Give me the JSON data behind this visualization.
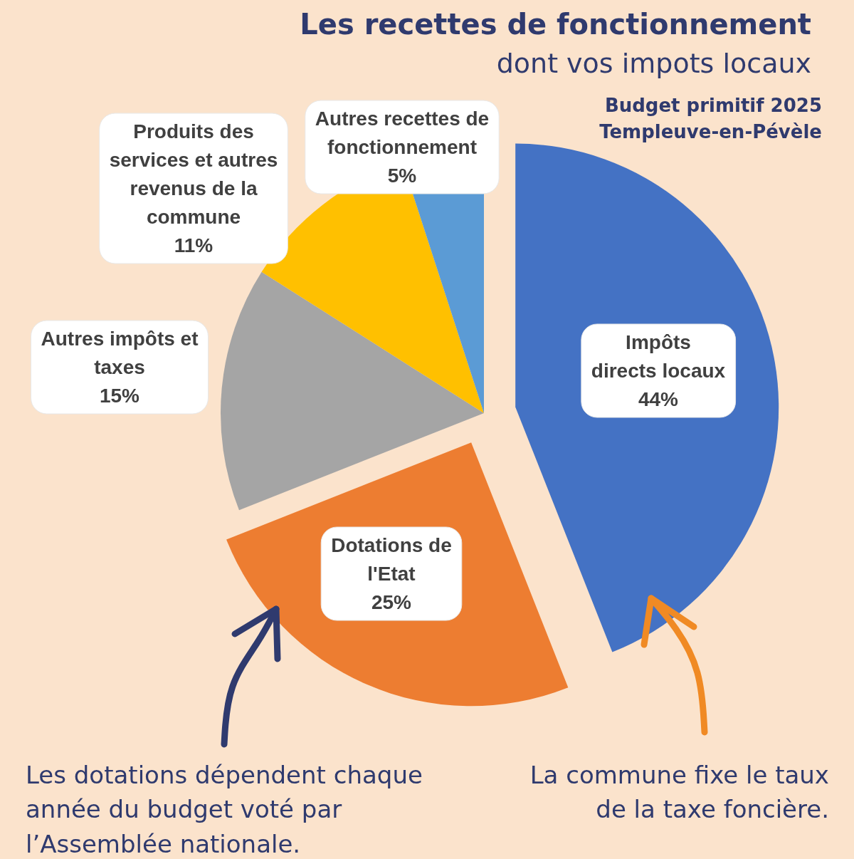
{
  "chart_data": {
    "type": "pie",
    "title": "Les recettes de fonctionnement",
    "subtitle": "dont vos impots locaux",
    "categories": [
      "Impôts directs locaux",
      "Dotations de l'Etat",
      "Autres impôts et taxes",
      "Produits des services et autres revenus de la commune",
      "Autres recettes de fonctionnement"
    ],
    "values": [
      44,
      25,
      15,
      11,
      5
    ],
    "colors": [
      "#4472c4",
      "#ed7d31",
      "#a5a5a5",
      "#ffc000",
      "#5b9bd5"
    ],
    "value_labels": [
      "44%",
      "25%",
      "15%",
      "11%",
      "5%"
    ],
    "annotations": [
      "Budget primitif 2025",
      "Templeuve-en-Pévèle",
      "Les dotations dépendent chaque année du budget voté par l’Assemblée nationale.",
      "La commune fixe le taux de la taxe foncière."
    ]
  }
}
